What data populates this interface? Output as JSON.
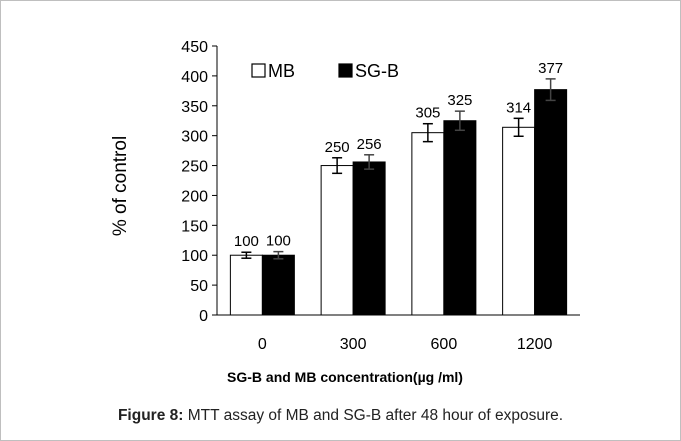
{
  "chart_data": {
    "type": "bar",
    "title": "",
    "xlabel": "SG-B and MB concentration(µg /ml)",
    "ylabel": "% of control",
    "ylim": [
      0,
      450
    ],
    "yticks": [
      0,
      50,
      100,
      150,
      200,
      250,
      300,
      350,
      400,
      450
    ],
    "categories": [
      "0",
      "300",
      "600",
      "1200"
    ],
    "legend_position": "top-left",
    "grid": false,
    "series": [
      {
        "name": "MB",
        "values": [
          100,
          250,
          305,
          314
        ],
        "errors": [
          5,
          13,
          15,
          15
        ],
        "labels": [
          "100",
          "250",
          "305",
          "314"
        ],
        "color": "#ffffff"
      },
      {
        "name": "SG-B",
        "values": [
          100,
          256,
          325,
          377
        ],
        "errors": [
          6,
          12,
          16,
          18
        ],
        "labels": [
          "100",
          "256",
          "325",
          "377"
        ],
        "color": "#000000"
      }
    ]
  },
  "caption": {
    "prefix": "Figure 8:",
    "text": " MTT assay of MB and SG-B after 48 hour of exposure."
  }
}
